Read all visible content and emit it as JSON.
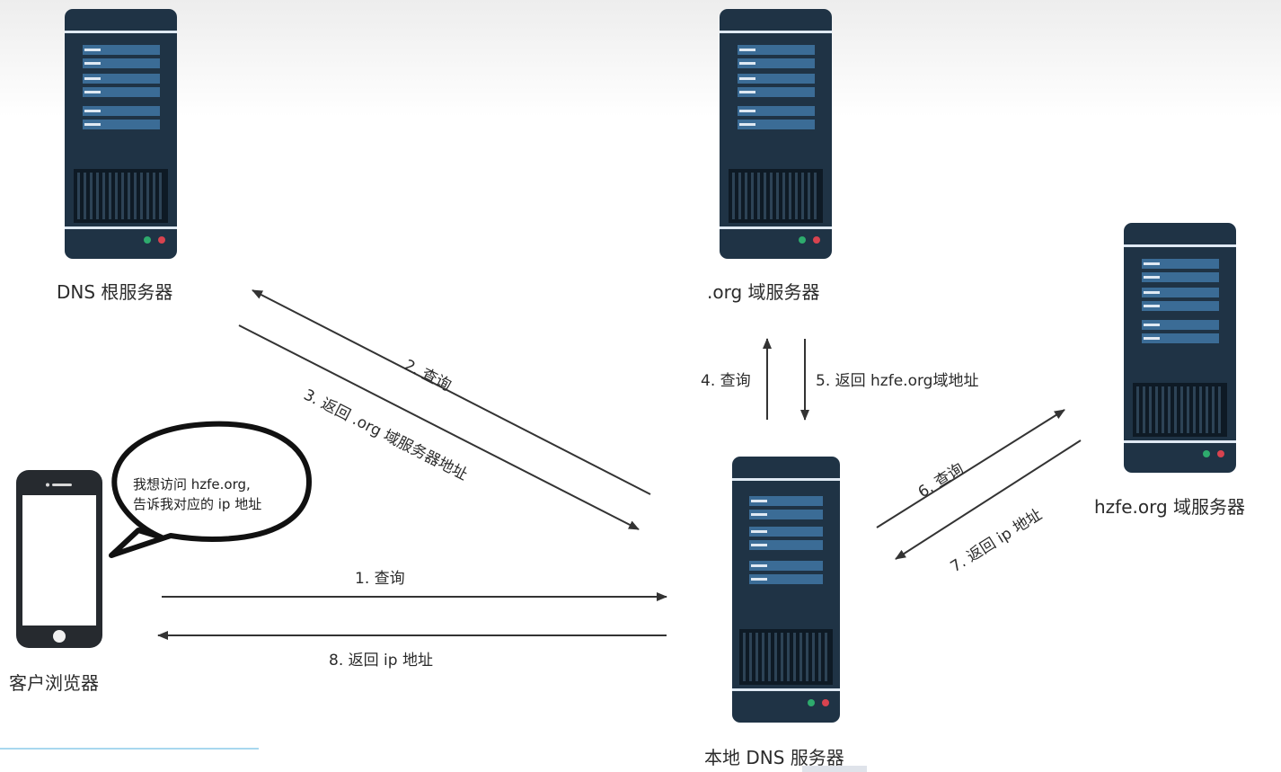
{
  "nodes": {
    "root": {
      "label": "DNS 根服务器"
    },
    "org": {
      "label": ".org 域服务器"
    },
    "hzfe": {
      "label": "hzfe.org 域服务器"
    },
    "local": {
      "label": "本地 DNS 服务器"
    },
    "client": {
      "label": "客户浏览器"
    }
  },
  "bubble": {
    "line1": "我想访问 hzfe.org,",
    "line2": "告诉我对应的 ip 地址"
  },
  "steps": {
    "s1": "1. 查询",
    "s2": "2. 查询",
    "s3": "3. 返回 .org 域服务器地址",
    "s4": "4. 查询",
    "s5": "5. 返回 hzfe.org域地址",
    "s6": "6. 查询",
    "s7": "7. 返回 ip 地址",
    "s8": "8. 返回 ip 地址"
  },
  "colors": {
    "server_body": "#1f3345",
    "server_panel": "#3b6c96",
    "server_light": "#dfe9f3",
    "led_green": "#2eab6d",
    "led_red": "#d8434f",
    "arrow": "#333333"
  }
}
